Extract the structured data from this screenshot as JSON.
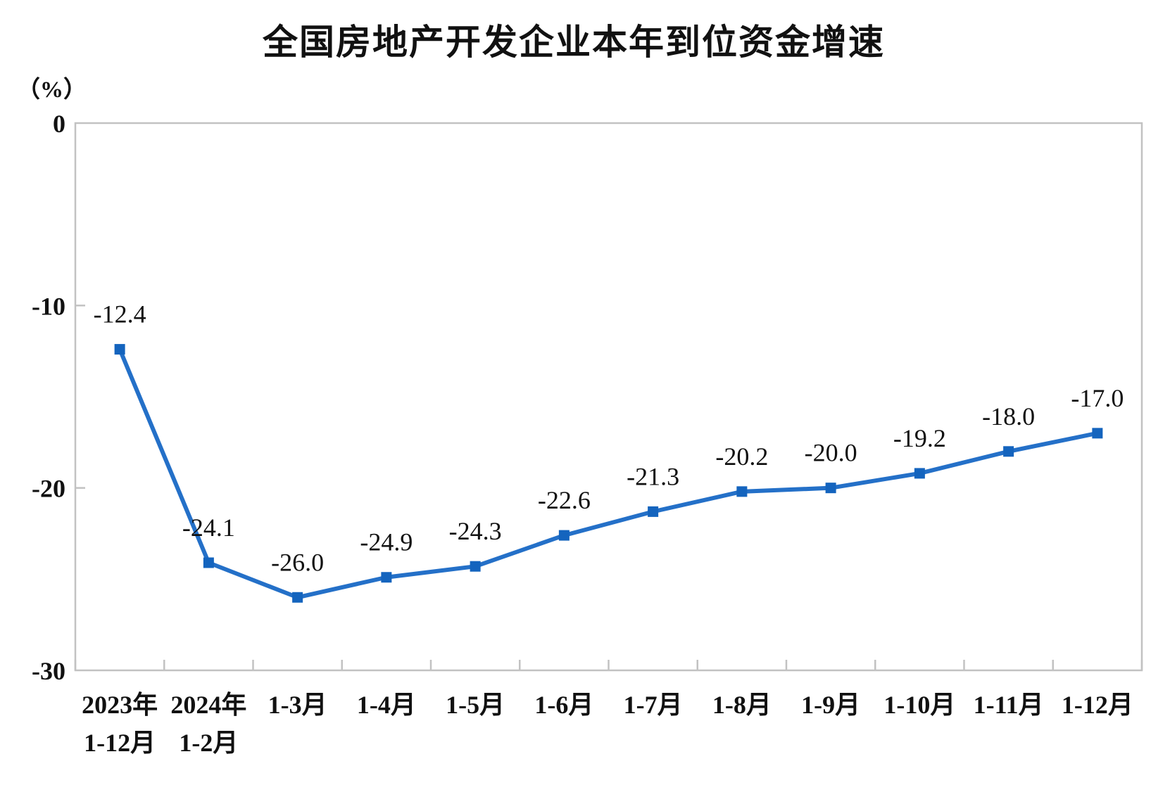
{
  "chart_data": {
    "type": "line",
    "title": "全国房地产开发企业本年到位资金增速",
    "unit_label": "（%）",
    "categories": [
      [
        "2023年",
        "1-12月"
      ],
      [
        "2024年",
        "1-2月"
      ],
      [
        "1-3月"
      ],
      [
        "1-4月"
      ],
      [
        "1-5月"
      ],
      [
        "1-6月"
      ],
      [
        "1-7月"
      ],
      [
        "1-8月"
      ],
      [
        "1-9月"
      ],
      [
        "1-10月"
      ],
      [
        "1-11月"
      ],
      [
        "1-12月"
      ]
    ],
    "values": [
      -12.4,
      -24.1,
      -26.0,
      -24.9,
      -24.3,
      -22.6,
      -21.3,
      -20.2,
      -20.0,
      -19.2,
      -18.0,
      -17.0
    ],
    "data_labels": [
      "-12.4",
      "-24.1",
      "-26.0",
      "-24.9",
      "-24.3",
      "-22.6",
      "-21.3",
      "-20.2",
      "-20.0",
      "-19.2",
      "-18.0",
      "-17.0"
    ],
    "ylim": [
      -30,
      0
    ],
    "yticks": [
      0,
      -10,
      -20,
      -30
    ],
    "ytick_labels": [
      "0",
      "-10",
      "-20",
      "-30"
    ],
    "grid": false,
    "legend": "none",
    "series_name": "本年到位资金增速",
    "line_color": "#2470C8",
    "marker_color": "#1464BE",
    "marker_shape": "square",
    "axis_color": "#C2C2C2",
    "text_color": "#111111"
  }
}
